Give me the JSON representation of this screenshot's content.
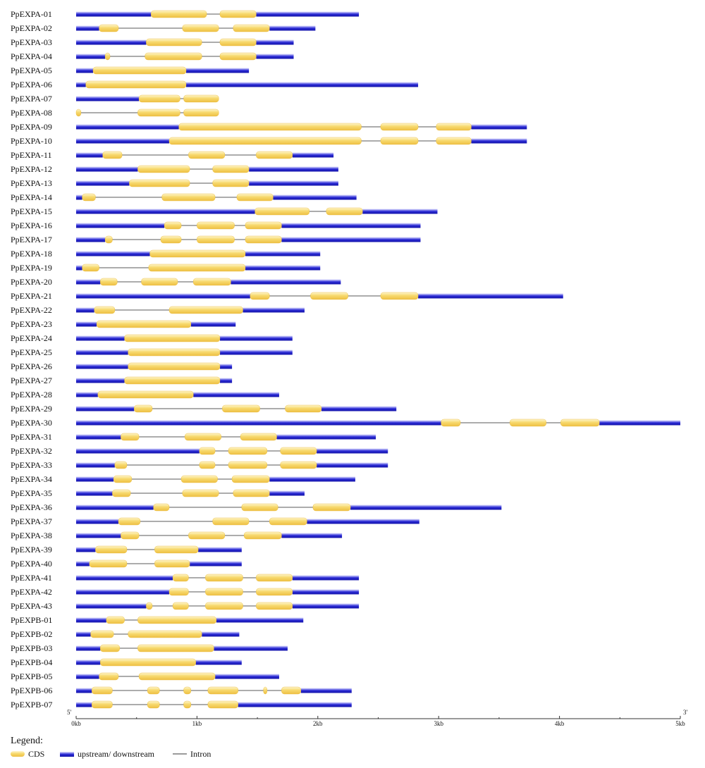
{
  "chart_data": {
    "type": "gene_structure",
    "axis": {
      "min_kb": 0,
      "max_kb": 5,
      "tick_labels": [
        "0kb",
        "1kb",
        "2kb",
        "3kb",
        "4kb",
        "5kb"
      ],
      "left_end_label": "5'",
      "right_end_label": "3'"
    },
    "legend": {
      "title": "Legend:",
      "items": [
        {
          "key": "cds",
          "label": "CDS"
        },
        {
          "key": "utr",
          "label": "upstream/ downstream"
        },
        {
          "key": "intron",
          "label": "Intron"
        }
      ]
    },
    "colors": {
      "cds_fill": "#f3d165",
      "cds_stroke": "#e8b630",
      "utr": "#2b2bd6",
      "intron": "#7a7a7a"
    },
    "genes": [
      {
        "name": "PpEXPA-01",
        "length": 2.34,
        "cds": [
          [
            0.62,
            1.08
          ],
          [
            1.19,
            1.49
          ]
        ]
      },
      {
        "name": "PpEXPA-02",
        "length": 1.98,
        "cds": [
          [
            0.19,
            0.35
          ],
          [
            0.88,
            1.18
          ],
          [
            1.3,
            1.6
          ]
        ]
      },
      {
        "name": "PpEXPA-03",
        "length": 1.8,
        "cds": [
          [
            0.58,
            1.04
          ],
          [
            1.19,
            1.49
          ]
        ]
      },
      {
        "name": "PpEXPA-04",
        "length": 1.8,
        "cds": [
          [
            0.24,
            0.28
          ],
          [
            0.57,
            1.04
          ],
          [
            1.19,
            1.49
          ]
        ]
      },
      {
        "name": "PpEXPA-05",
        "length": 1.43,
        "cds": [
          [
            0.14,
            0.91
          ]
        ]
      },
      {
        "name": "PpEXPA-06",
        "length": 2.83,
        "cds": [
          [
            0.08,
            0.91
          ]
        ]
      },
      {
        "name": "PpEXPA-07",
        "length": 1.18,
        "cds": [
          [
            0.52,
            0.86
          ],
          [
            0.89,
            1.18
          ]
        ]
      },
      {
        "name": "PpEXPA-08",
        "length": 1.18,
        "cds": [
          [
            0.0,
            0.04
          ],
          [
            0.51,
            0.86
          ],
          [
            0.89,
            1.18
          ]
        ]
      },
      {
        "name": "PpEXPA-09",
        "length": 3.73,
        "cds": [
          [
            0.85,
            2.36
          ],
          [
            2.52,
            2.83
          ],
          [
            2.98,
            3.27
          ]
        ]
      },
      {
        "name": "PpEXPA-10",
        "length": 3.73,
        "cds": [
          [
            0.77,
            2.36
          ],
          [
            2.52,
            2.83
          ],
          [
            2.98,
            3.27
          ]
        ]
      },
      {
        "name": "PpEXPA-11",
        "length": 2.13,
        "cds": [
          [
            0.22,
            0.38
          ],
          [
            0.93,
            1.23
          ],
          [
            1.49,
            1.79
          ]
        ]
      },
      {
        "name": "PpEXPA-12",
        "length": 2.17,
        "cds": [
          [
            0.51,
            0.94
          ],
          [
            1.13,
            1.43
          ]
        ]
      },
      {
        "name": "PpEXPA-13",
        "length": 2.17,
        "cds": [
          [
            0.44,
            0.94
          ],
          [
            1.13,
            1.43
          ]
        ]
      },
      {
        "name": "PpEXPA-14",
        "length": 2.32,
        "cds": [
          [
            0.05,
            0.16
          ],
          [
            0.71,
            1.15
          ],
          [
            1.33,
            1.63
          ]
        ]
      },
      {
        "name": "PpEXPA-15",
        "length": 2.99,
        "cds": [
          [
            1.48,
            1.93
          ],
          [
            2.07,
            2.37
          ]
        ]
      },
      {
        "name": "PpEXPA-16",
        "length": 2.85,
        "cds": [
          [
            0.73,
            0.87
          ],
          [
            1.0,
            1.31
          ],
          [
            1.4,
            1.7
          ]
        ]
      },
      {
        "name": "PpEXPA-17",
        "length": 2.85,
        "cds": [
          [
            0.24,
            0.3
          ],
          [
            0.7,
            0.87
          ],
          [
            1.0,
            1.31
          ],
          [
            1.4,
            1.7
          ]
        ]
      },
      {
        "name": "PpEXPA-18",
        "length": 2.02,
        "cds": [
          [
            0.61,
            1.4
          ]
        ]
      },
      {
        "name": "PpEXPA-19",
        "length": 2.02,
        "cds": [
          [
            0.05,
            0.19
          ],
          [
            0.6,
            1.4
          ]
        ]
      },
      {
        "name": "PpEXPA-20",
        "length": 2.19,
        "cds": [
          [
            0.2,
            0.34
          ],
          [
            0.54,
            0.84
          ],
          [
            0.97,
            1.28
          ]
        ]
      },
      {
        "name": "PpEXPA-21",
        "length": 4.03,
        "cds": [
          [
            1.44,
            1.6
          ],
          [
            1.94,
            2.25
          ],
          [
            2.52,
            2.83
          ]
        ]
      },
      {
        "name": "PpEXPA-22",
        "length": 1.89,
        "cds": [
          [
            0.15,
            0.32
          ],
          [
            0.77,
            1.38
          ]
        ]
      },
      {
        "name": "PpEXPA-23",
        "length": 1.32,
        "cds": [
          [
            0.17,
            0.95
          ]
        ]
      },
      {
        "name": "PpEXPA-24",
        "length": 1.79,
        "cds": [
          [
            0.4,
            1.19
          ]
        ]
      },
      {
        "name": "PpEXPA-25",
        "length": 1.79,
        "cds": [
          [
            0.43,
            1.19
          ]
        ]
      },
      {
        "name": "PpEXPA-26",
        "length": 1.29,
        "cds": [
          [
            0.43,
            1.19
          ]
        ]
      },
      {
        "name": "PpEXPA-27",
        "length": 1.29,
        "cds": [
          [
            0.4,
            1.19
          ]
        ]
      },
      {
        "name": "PpEXPA-28",
        "length": 1.68,
        "cds": [
          [
            0.18,
            0.97
          ]
        ]
      },
      {
        "name": "PpEXPA-29",
        "length": 2.65,
        "cds": [
          [
            0.48,
            0.63
          ],
          [
            1.21,
            1.52
          ],
          [
            1.73,
            2.03
          ]
        ]
      },
      {
        "name": "PpEXPA-30",
        "length": 5.0,
        "cds": [
          [
            3.02,
            3.18
          ],
          [
            3.59,
            3.89
          ],
          [
            4.01,
            4.33
          ]
        ]
      },
      {
        "name": "PpEXPA-31",
        "length": 2.48,
        "cds": [
          [
            0.37,
            0.52
          ],
          [
            0.9,
            1.2
          ],
          [
            1.36,
            1.66
          ]
        ]
      },
      {
        "name": "PpEXPA-32",
        "length": 2.58,
        "cds": [
          [
            1.02,
            1.15
          ],
          [
            1.26,
            1.58
          ],
          [
            1.69,
            1.99
          ]
        ]
      },
      {
        "name": "PpEXPA-33",
        "length": 2.58,
        "cds": [
          [
            0.32,
            0.42
          ],
          [
            1.02,
            1.15
          ],
          [
            1.26,
            1.58
          ],
          [
            1.69,
            1.99
          ]
        ]
      },
      {
        "name": "PpEXPA-34",
        "length": 2.31,
        "cds": [
          [
            0.31,
            0.46
          ],
          [
            0.87,
            1.17
          ],
          [
            1.29,
            1.6
          ]
        ]
      },
      {
        "name": "PpEXPA-35",
        "length": 1.89,
        "cds": [
          [
            0.3,
            0.45
          ],
          [
            0.88,
            1.18
          ],
          [
            1.3,
            1.6
          ]
        ]
      },
      {
        "name": "PpEXPA-36",
        "length": 3.52,
        "cds": [
          [
            0.64,
            0.77
          ],
          [
            1.37,
            1.67
          ],
          [
            1.96,
            2.27
          ]
        ]
      },
      {
        "name": "PpEXPA-37",
        "length": 2.84,
        "cds": [
          [
            0.35,
            0.53
          ],
          [
            1.13,
            1.43
          ],
          [
            1.6,
            1.91
          ]
        ]
      },
      {
        "name": "PpEXPA-38",
        "length": 2.2,
        "cds": [
          [
            0.37,
            0.52
          ],
          [
            0.93,
            1.23
          ],
          [
            1.39,
            1.7
          ]
        ]
      },
      {
        "name": "PpEXPA-39",
        "length": 1.37,
        "cds": [
          [
            0.16,
            0.42
          ],
          [
            0.65,
            1.01
          ]
        ]
      },
      {
        "name": "PpEXPA-40",
        "length": 1.37,
        "cds": [
          [
            0.11,
            0.42
          ],
          [
            0.65,
            0.94
          ]
        ]
      },
      {
        "name": "PpEXPA-41",
        "length": 2.34,
        "cds": [
          [
            0.8,
            0.93
          ],
          [
            1.07,
            1.38
          ],
          [
            1.49,
            1.79
          ]
        ]
      },
      {
        "name": "PpEXPA-42",
        "length": 2.34,
        "cds": [
          [
            0.77,
            0.93
          ],
          [
            1.07,
            1.38
          ],
          [
            1.49,
            1.79
          ]
        ]
      },
      {
        "name": "PpEXPA-43",
        "length": 2.34,
        "cds": [
          [
            0.58,
            0.63
          ],
          [
            0.8,
            0.93
          ],
          [
            1.07,
            1.38
          ],
          [
            1.49,
            1.79
          ]
        ]
      },
      {
        "name": "PpEXPB-01",
        "length": 1.88,
        "cds": [
          [
            0.25,
            0.4
          ],
          [
            0.51,
            1.16
          ]
        ]
      },
      {
        "name": "PpEXPB-02",
        "length": 1.35,
        "cds": [
          [
            0.12,
            0.31
          ],
          [
            0.43,
            1.04
          ]
        ]
      },
      {
        "name": "PpEXPB-03",
        "length": 1.75,
        "cds": [
          [
            0.2,
            0.36
          ],
          [
            0.51,
            1.14
          ]
        ]
      },
      {
        "name": "PpEXPB-04",
        "length": 1.37,
        "cds": [
          [
            0.2,
            0.99
          ]
        ]
      },
      {
        "name": "PpEXPB-05",
        "length": 1.68,
        "cds": [
          [
            0.19,
            0.35
          ],
          [
            0.52,
            1.15
          ]
        ]
      },
      {
        "name": "PpEXPB-06",
        "length": 2.28,
        "cds": [
          [
            0.13,
            0.3
          ],
          [
            0.59,
            0.69
          ],
          [
            0.89,
            0.95
          ],
          [
            1.09,
            1.34
          ],
          [
            1.55,
            1.58
          ],
          [
            1.7,
            1.86
          ]
        ]
      },
      {
        "name": "PpEXPB-07",
        "length": 2.28,
        "cds": [
          [
            0.13,
            0.3
          ],
          [
            0.59,
            0.69
          ],
          [
            0.89,
            0.95
          ],
          [
            1.09,
            1.34
          ]
        ]
      }
    ]
  }
}
